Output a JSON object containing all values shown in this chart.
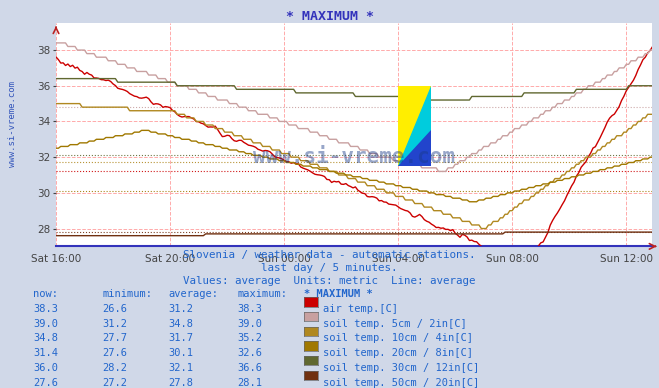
{
  "title": "* MAXIMUM *",
  "subtitle1": "Slovenia / weather data - automatic stations.",
  "subtitle2": "last day / 5 minutes.",
  "subtitle3": "Values: average  Units: metric  Line: average",
  "bg_color": "#d0d8e8",
  "plot_bg": "#ffffff",
  "x_labels": [
    "Sat 16:00",
    "Sat 20:00",
    "Sun 00:00",
    "Sun 04:00",
    "Sun 08:00",
    "Sun 12:00"
  ],
  "y_ticks": [
    28,
    30,
    32,
    34,
    36,
    38
  ],
  "ylim_min": 27.0,
  "ylim_max": 39.5,
  "n_points": 252,
  "x_tick_indices": [
    0,
    48,
    96,
    144,
    192,
    240
  ],
  "series": [
    {
      "name": "air temp.[C]",
      "color": "#cc0000",
      "swatch_color": "#cc0000",
      "now": "38.3",
      "minimum": "26.6",
      "average": "31.2",
      "maximum": "38.3",
      "avg": 31.2
    },
    {
      "name": "soil temp. 5cm / 2in[C]",
      "color": "#c8a0a0",
      "swatch_color": "#c8a0a0",
      "now": "39.0",
      "minimum": "31.2",
      "average": "34.8",
      "maximum": "39.0",
      "avg": 34.8
    },
    {
      "name": "soil temp. 10cm / 4in[C]",
      "color": "#b08820",
      "swatch_color": "#b08820",
      "now": "34.8",
      "minimum": "27.7",
      "average": "31.7",
      "maximum": "35.2",
      "avg": 31.7
    },
    {
      "name": "soil temp. 20cm / 8in[C]",
      "color": "#a07800",
      "swatch_color": "#a07800",
      "now": "31.4",
      "minimum": "27.6",
      "average": "30.1",
      "maximum": "32.6",
      "avg": 30.1
    },
    {
      "name": "soil temp. 30cm / 12in[C]",
      "color": "#606830",
      "swatch_color": "#606830",
      "now": "36.0",
      "minimum": "28.2",
      "average": "32.1",
      "maximum": "36.6",
      "avg": 32.1
    },
    {
      "name": "soil temp. 50cm / 20in[C]",
      "color": "#703010",
      "swatch_color": "#703010",
      "now": "27.6",
      "minimum": "27.2",
      "average": "27.8",
      "maximum": "28.1",
      "avg": 27.8
    }
  ],
  "text_color": "#2266cc",
  "table_text_color": "#2266cc"
}
